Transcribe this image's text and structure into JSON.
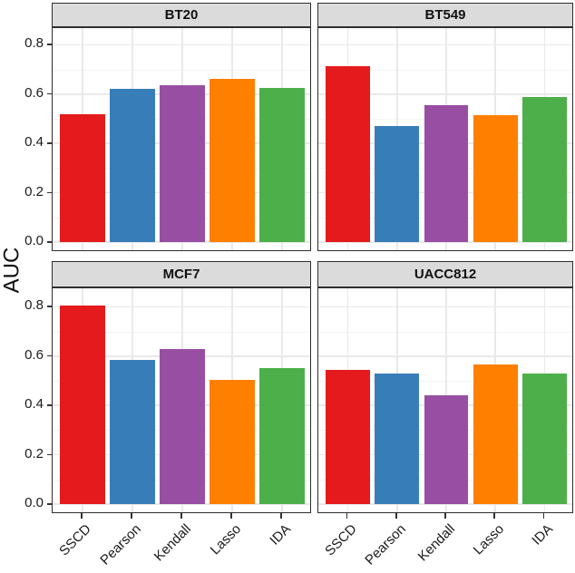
{
  "chart_data": {
    "type": "bar",
    "title": "",
    "xlabel": "",
    "ylabel": "AUC",
    "legend_position": "none",
    "grid": true,
    "facet_layout": "2x2",
    "categories": [
      "SSCD",
      "Pearson",
      "Kendall",
      "Lasso",
      "IDA"
    ],
    "bar_colors": [
      "#E41A1C",
      "#377EB8",
      "#984EA3",
      "#FF7F00",
      "#4DAF4A"
    ],
    "facets": [
      {
        "title": "BT20",
        "values": [
          0.52,
          0.62,
          0.635,
          0.66,
          0.625
        ]
      },
      {
        "title": "BT549",
        "values": [
          0.715,
          0.47,
          0.555,
          0.515,
          0.59
        ]
      },
      {
        "title": "MCF7",
        "values": [
          0.805,
          0.585,
          0.63,
          0.505,
          0.55
        ]
      },
      {
        "title": "UACC812",
        "values": [
          0.545,
          0.53,
          0.44,
          0.565,
          0.53
        ]
      }
    ],
    "y_tick_labels": [
      "0.8",
      "0.6",
      "0.4",
      "0.2",
      "0.0"
    ],
    "y_tick_values": [
      0.8,
      0.6,
      0.4,
      0.2,
      0.0
    ],
    "y_minor_values": [
      0.7,
      0.5,
      0.3,
      0.1
    ],
    "ylim": [
      0,
      0.87
    ],
    "colors": {
      "strip_bg": "#DBDBDB",
      "strip_border": "#2E2E2E",
      "panel_border": "#2E2E2E",
      "grid_major": "#E9E9E9",
      "grid_minor": "#F4F4F4",
      "tick": "#333333",
      "text": "#1A1A1A"
    }
  }
}
